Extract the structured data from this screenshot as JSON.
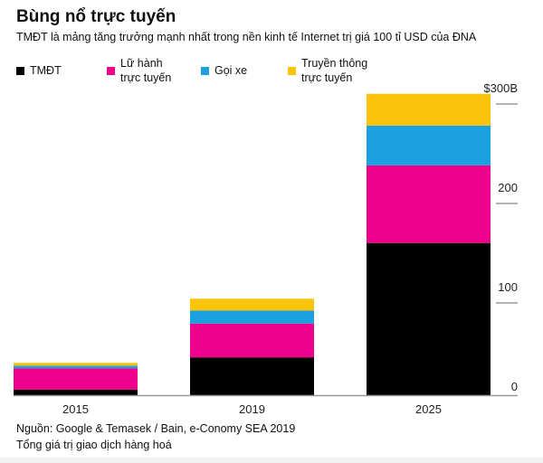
{
  "header": {
    "title": "Bùng nổ trực tuyến",
    "subtitle": "TMĐT là mảng tăng trưởng mạnh nhất trong nền kinh tế Internet trị giá 100 tỉ USD của ĐNA"
  },
  "chart_data": {
    "type": "bar",
    "stacked": true,
    "categories": [
      "2015",
      "2019",
      "2025"
    ],
    "series": [
      {
        "name": "TMĐT",
        "color": "#000000",
        "values": [
          5.5,
          38,
          153
        ]
      },
      {
        "name": "Lữ hành trực tuyến",
        "color": "#ec008c",
        "values": [
          21.6,
          34,
          78
        ]
      },
      {
        "name": "Gọi xe",
        "color": "#1ba1e2",
        "values": [
          2.5,
          13,
          40
        ]
      },
      {
        "name": "Truyền thông trực tuyến",
        "color": "#fcc30b",
        "values": [
          2.9,
          12,
          32
        ]
      }
    ],
    "legend_lines": [
      [
        "TMĐT"
      ],
      [
        "Lữ hành",
        "trực tuyến"
      ],
      [
        "Gọi xe"
      ],
      [
        "Truyền thông",
        "trực tuyến"
      ]
    ],
    "yticks": [
      {
        "value": 0,
        "label": "0"
      },
      {
        "value": 100,
        "label": "100"
      },
      {
        "value": 200,
        "label": "200"
      },
      {
        "value": 300,
        "label": "$300B"
      }
    ],
    "ylim": [
      0,
      300
    ],
    "legend_position": "top"
  },
  "footer": {
    "source": "Nguồn:  Google & Temasek / Bain, e-Conomy SEA 2019",
    "note": "Tổng giá trị giao dịch hàng hoá"
  }
}
